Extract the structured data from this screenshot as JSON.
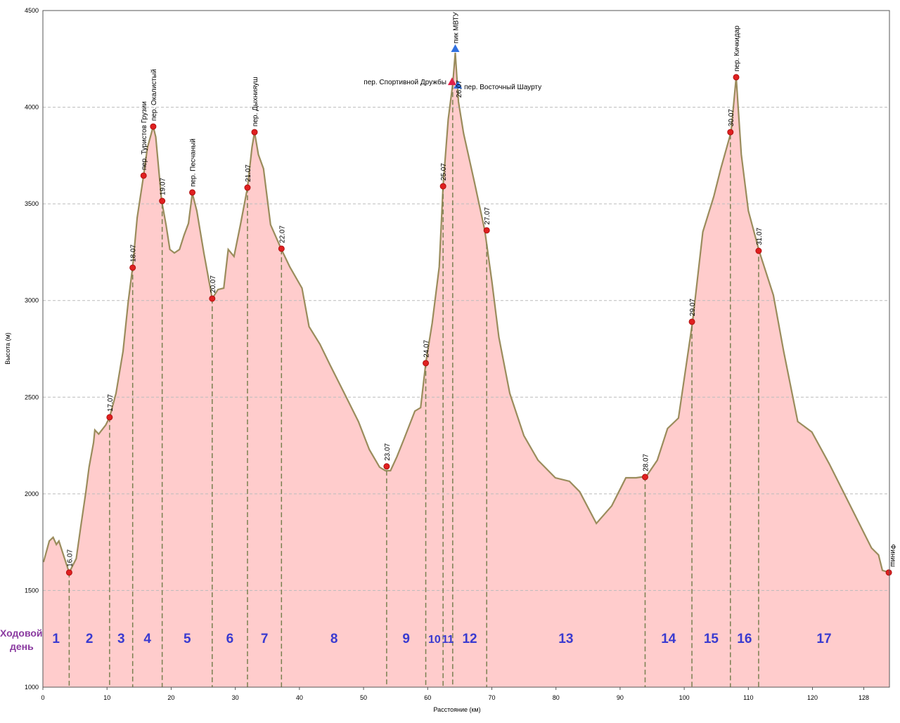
{
  "chart_data": {
    "type": "area",
    "xlabel": "Расстояние (км)",
    "ylabel": "Высота (м)",
    "xlim": [
      0,
      132
    ],
    "xticks": [
      0,
      10,
      20,
      30,
      40,
      50,
      60,
      70,
      80,
      90,
      100,
      110,
      120,
      128
    ],
    "ylim": [
      1000,
      4500
    ],
    "yticks": [
      1000,
      1500,
      2000,
      2500,
      3000,
      3500,
      4000,
      4500
    ],
    "grid": true,
    "color": "#9a8c5c",
    "fill": "#ffcccc",
    "x": [
      0.1,
      1.0,
      1.6,
      2.1,
      2.5,
      3.2,
      4.1,
      5.2,
      5.9,
      6.7,
      7.2,
      7.9,
      8.1,
      8.7,
      9.8,
      10.4,
      11.4,
      12.5,
      13.3,
      14.0,
      14.7,
      15.7,
      16.3,
      17.2,
      17.6,
      18.5,
      19.2,
      19.8,
      20.5,
      21.3,
      22.0,
      22.7,
      23.3,
      24.0,
      25.1,
      25.9,
      26.4,
      27.3,
      28.2,
      28.9,
      29.8,
      30.8,
      31.9,
      32.6,
      33.0,
      33.6,
      34.4,
      35.5,
      37.2,
      38.5,
      40.4,
      41.5,
      43.2,
      44.8,
      47.0,
      49.2,
      50.9,
      52.5,
      53.4,
      54.2,
      55.2,
      56.3,
      58.0,
      58.9,
      59.7,
      60.7,
      61.8,
      62.4,
      63.2,
      63.9,
      64.3,
      64.8,
      65.6,
      67.3,
      68.9,
      70.0,
      71.1,
      72.8,
      75.0,
      77.2,
      79.9,
      82.1,
      83.7,
      86.3,
      88.7,
      90.9,
      92.5,
      94.1,
      95.8,
      97.4,
      99.1,
      101.3,
      102.9,
      104.6,
      105.7,
      107.3,
      108.1,
      108.9,
      110.0,
      111.7,
      113.9,
      115.5,
      117.7,
      119.9,
      122.6,
      125.9,
      129.2,
      130.3,
      130.9,
      132.0
    ],
    "values": [
      1647,
      1756,
      1775,
      1738,
      1756,
      1684,
      1593,
      1665,
      1829,
      2010,
      2138,
      2265,
      2330,
      2309,
      2356,
      2396,
      2520,
      2738,
      2992,
      3174,
      3428,
      3646,
      3791,
      3900,
      3846,
      3519,
      3392,
      3264,
      3246,
      3264,
      3337,
      3399,
      3555,
      3464,
      3246,
      3101,
      3010,
      3057,
      3064,
      3264,
      3228,
      3392,
      3584,
      3791,
      3871,
      3755,
      3682,
      3392,
      3264,
      3174,
      3064,
      2865,
      2774,
      2665,
      2520,
      2374,
      2229,
      2138,
      2120,
      2120,
      2192,
      2283,
      2428,
      2446,
      2676,
      2883,
      3174,
      3591,
      3937,
      4118,
      4282,
      4028,
      3864,
      3610,
      3363,
      3101,
      2810,
      2520,
      2301,
      2174,
      2083,
      2065,
      2011,
      1847,
      1938,
      2083,
      2083,
      2091,
      2174,
      2338,
      2392,
      2890,
      3355,
      3537,
      3682,
      3871,
      4155,
      3755,
      3464,
      3254,
      3028,
      2738,
      2374,
      2320,
      2156,
      1938,
      1720,
      1684,
      1604,
      1593
    ],
    "markers": [
      {
        "label": "16.07",
        "x": 4.1,
        "y": 1593
      },
      {
        "label": "17.07",
        "x": 10.4,
        "y": 2396
      },
      {
        "label": "18.07",
        "x": 14.0,
        "y": 3170
      },
      {
        "label": "пер. Туристов Грузии",
        "x": 15.7,
        "y": 3646
      },
      {
        "label": "пер. Окалистый",
        "x": 17.2,
        "y": 3900
      },
      {
        "label": "19.07",
        "x": 18.6,
        "y": 3515
      },
      {
        "label": "пер. Песчаный",
        "x": 23.3,
        "y": 3559
      },
      {
        "label": "20.07",
        "x": 26.4,
        "y": 3010
      },
      {
        "label": "21.07",
        "x": 31.9,
        "y": 3584
      },
      {
        "label": "пер. Дыхнияуш",
        "x": 33.0,
        "y": 3871
      },
      {
        "label": "22.07",
        "x": 37.2,
        "y": 3268
      },
      {
        "label": "23.07",
        "x": 53.6,
        "y": 2142
      },
      {
        "label": "24.07",
        "x": 59.7,
        "y": 2676
      },
      {
        "label": "25.07",
        "x": 62.4,
        "y": 3591
      },
      {
        "label": "пер. Спортивной Дружбы",
        "x": 63.8,
        "y": 4129
      },
      {
        "label": "пик МВТУ",
        "x": 64.3,
        "y": 4300
      },
      {
        "label": "пер. Восточный Шаурту",
        "x": 64.7,
        "y": 4111
      },
      {
        "label": "26.07",
        "x": 64.8,
        "y": 4020
      },
      {
        "label": "27.07",
        "x": 69.2,
        "y": 3363
      },
      {
        "label": "28.07",
        "x": 93.9,
        "y": 2087
      },
      {
        "label": "29.07",
        "x": 101.2,
        "y": 2890
      },
      {
        "label": "30.07",
        "x": 107.2,
        "y": 3871
      },
      {
        "label": "пер. Кичкидар",
        "x": 108.1,
        "y": 4155
      },
      {
        "label": "31.07",
        "x": 111.6,
        "y": 3257
      },
      {
        "label": "Финиш",
        "x": 131.9,
        "y": 1593
      }
    ],
    "dividers": [
      4.1,
      10.4,
      14.0,
      18.6,
      26.4,
      31.9,
      37.2,
      53.6,
      59.7,
      62.4,
      63.9,
      69.2,
      93.9,
      101.2,
      107.2,
      111.6
    ],
    "days_title": [
      "Ходовой",
      "день"
    ],
    "days": [
      "1",
      "2",
      "3",
      "4",
      "5",
      "6",
      "7",
      "8",
      "9",
      "10",
      "11",
      "12",
      "13",
      "14",
      "15",
      "16",
      "17"
    ]
  }
}
